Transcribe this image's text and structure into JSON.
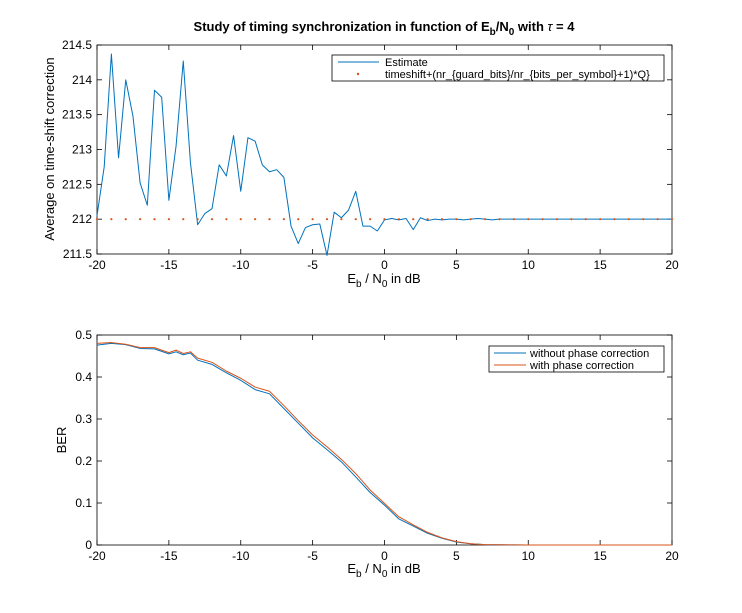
{
  "chart_data": [
    {
      "type": "line",
      "title": {
        "prefix": "Study of timing synchronization in function of E",
        "sub1": "b",
        "mid": "/N",
        "sub2": "0",
        "suffix1": " with ",
        "tau": "τ",
        "suffix2": " = 4"
      },
      "xlabel": {
        "main": "E",
        "sub": "b",
        "mid": " / N",
        "sub2": "0",
        "end": " in dB"
      },
      "ylabel": "Average on time-shift correction",
      "xlim": [
        -20,
        20
      ],
      "ylim": [
        211.5,
        214.5
      ],
      "xticks": [
        "-20",
        "-15",
        "-10",
        "-5",
        "0",
        "5",
        "10",
        "15",
        "20"
      ],
      "yticks": [
        "211.5",
        "212",
        "212.5",
        "213",
        "213.5",
        "214",
        "214.5"
      ],
      "legend": [
        "Estimate",
        "timeshift+(nr_{guard_bits}/nr_{bits_per_symbol}+1)*Q}"
      ],
      "legend_position": "top-right",
      "colors": [
        "#0072bd",
        "#d95319"
      ],
      "series": [
        {
          "name": "Estimate",
          "style": "solid",
          "x": [
            -20,
            -19.5,
            -19,
            -18.5,
            -18,
            -17.5,
            -17,
            -16.5,
            -16,
            -15.5,
            -15,
            -14.5,
            -14,
            -13.5,
            -13,
            -12.5,
            -12,
            -11.5,
            -11,
            -10.5,
            -10,
            -9.5,
            -9,
            -8.5,
            -8,
            -7.5,
            -7,
            -6.5,
            -6,
            -5.5,
            -5,
            -4.5,
            -4,
            -3.5,
            -3,
            -2.5,
            -2,
            -1.5,
            -1,
            -0.5,
            0,
            0.5,
            1,
            1.5,
            2,
            2.5,
            3,
            3.5,
            4,
            4.5,
            5,
            5.5,
            6,
            6.5,
            7,
            7.5,
            8,
            8.5,
            9,
            9.5,
            10,
            11,
            12,
            13,
            14,
            15,
            16,
            17,
            18,
            19,
            20
          ],
          "y": [
            212.05,
            212.75,
            214.37,
            212.88,
            214.0,
            213.48,
            212.52,
            212.2,
            213.85,
            213.75,
            212.27,
            213.05,
            214.27,
            212.81,
            211.92,
            212.08,
            212.15,
            212.78,
            212.62,
            213.2,
            212.4,
            213.17,
            213.12,
            212.78,
            212.68,
            212.71,
            212.6,
            211.9,
            211.65,
            211.88,
            211.92,
            211.93,
            211.48,
            212.1,
            212.02,
            212.13,
            212.4,
            211.9,
            211.9,
            211.83,
            211.99,
            212.01,
            211.99,
            212.01,
            211.85,
            212.02,
            211.98,
            212.0,
            211.99,
            212.0,
            212.0,
            211.99,
            212.0,
            212.01,
            212.0,
            211.99,
            212.0,
            212.0,
            212.0,
            212.0,
            212.0,
            212.0,
            212.0,
            212.0,
            212.0,
            212.0,
            212.0,
            212.0,
            212.0,
            212.0,
            212.0
          ]
        },
        {
          "name": "timeshift+(nr_{guard_bits}/nr_{bits_per_symbol}+1)*Q}",
          "style": "dotted",
          "x": [
            -20,
            -19,
            -18,
            -17,
            -16,
            -15,
            -14,
            -13,
            -12,
            -11,
            -10,
            -9,
            -8,
            -7,
            -6,
            -5,
            -4,
            -3,
            -2,
            -1,
            0,
            1,
            2,
            3,
            4,
            5,
            6,
            7,
            8,
            9,
            10,
            11,
            12,
            13,
            14,
            15,
            16,
            17,
            18,
            19,
            20
          ],
          "y": [
            212,
            212,
            212,
            212,
            212,
            212,
            212,
            212,
            212,
            212,
            212,
            212,
            212,
            212,
            212,
            212,
            212,
            212,
            212,
            212,
            212,
            212,
            212,
            212,
            212,
            212,
            212,
            212,
            212,
            212,
            212,
            212,
            212,
            212,
            212,
            212,
            212,
            212,
            212,
            212,
            212
          ]
        }
      ]
    },
    {
      "type": "line",
      "xlabel": {
        "main": "E",
        "sub": "b",
        "mid": " / N",
        "sub2": "0",
        "end": " in dB"
      },
      "ylabel": "BER",
      "xlim": [
        -20,
        20
      ],
      "ylim": [
        0,
        0.5
      ],
      "xticks": [
        "-20",
        "-15",
        "-10",
        "-5",
        "0",
        "5",
        "10",
        "15",
        "20"
      ],
      "yticks": [
        "0",
        "0.1",
        "0.2",
        "0.3",
        "0.4",
        "0.5"
      ],
      "legend": [
        "without phase correction",
        "with phase correction"
      ],
      "legend_position": "top-right",
      "colors": [
        "#0072bd",
        "#d95319"
      ],
      "series": [
        {
          "name": "without phase correction",
          "x": [
            -20,
            -19,
            -18,
            -17,
            -16,
            -15,
            -14.5,
            -14,
            -13.5,
            -13,
            -12,
            -11,
            -10,
            -9,
            -8,
            -7,
            -6,
            -5,
            -4,
            -3,
            -2,
            -1,
            0,
            1,
            2,
            3,
            4,
            5,
            6,
            7,
            8,
            9,
            10,
            12,
            14,
            16,
            18,
            20
          ],
          "y": [
            0.476,
            0.48,
            0.477,
            0.468,
            0.467,
            0.455,
            0.46,
            0.453,
            0.457,
            0.44,
            0.43,
            0.41,
            0.392,
            0.37,
            0.36,
            0.325,
            0.29,
            0.255,
            0.227,
            0.198,
            0.162,
            0.125,
            0.095,
            0.062,
            0.045,
            0.028,
            0.016,
            0.007,
            0.003,
            0.001,
            0.0005,
            0.0002,
            0.0001,
            0,
            0,
            0,
            0,
            0
          ]
        },
        {
          "name": "with phase correction",
          "x": [
            -20,
            -19,
            -18,
            -17,
            -16,
            -15,
            -14.5,
            -14,
            -13.5,
            -13,
            -12,
            -11,
            -10,
            -9,
            -8,
            -7,
            -6,
            -5,
            -4,
            -3,
            -2,
            -1,
            0,
            1,
            2,
            3,
            4,
            5,
            6,
            7,
            8,
            9,
            10,
            12,
            14,
            16,
            18,
            20
          ],
          "y": [
            0.48,
            0.482,
            0.478,
            0.47,
            0.47,
            0.458,
            0.464,
            0.456,
            0.46,
            0.445,
            0.435,
            0.414,
            0.397,
            0.376,
            0.366,
            0.332,
            0.296,
            0.262,
            0.234,
            0.204,
            0.17,
            0.131,
            0.099,
            0.067,
            0.048,
            0.03,
            0.017,
            0.008,
            0.003,
            0.001,
            0.0005,
            0.0002,
            0.0001,
            0,
            0,
            0,
            0,
            0
          ]
        }
      ]
    }
  ]
}
